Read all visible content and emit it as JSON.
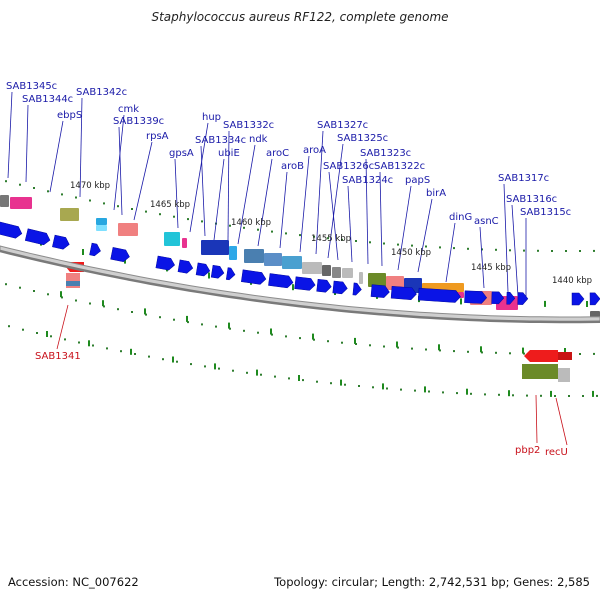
{
  "title": "Staphylococcus aureus RF122, complete genome",
  "footer": {
    "accession": "Accession: NC_007622",
    "topology": "Topology: circular; Length: 2,742,531 bp; Genes: 2,585"
  },
  "colors": {
    "background": "#ffffff",
    "forward_label": "#1a1aa8",
    "reverse_label": "#c8101a",
    "cds_arrow": "#0a14e6",
    "backbone": "#8c8c8c",
    "tick": "#1e8a1e",
    "dot": "#2e7d2e"
  },
  "kbp_labels": [
    "1470 kbp",
    "1465 kbp",
    "1460 kbp",
    "1455 kbp",
    "1450 kbp",
    "1445 kbp",
    "1440 kbp"
  ],
  "forward_genes": [
    "SAB1345c",
    "SAB1344c",
    "ebpS",
    "SAB1342c",
    "cmk",
    "SAB1339c",
    "rpsA",
    "gpsA",
    "hup",
    "SAB1334c",
    "ubiE",
    "SAB1332c",
    "ndk",
    "aroC",
    "aroB",
    "aroA",
    "SAB1327c",
    "SAB1325c",
    "SAB1326c",
    "SAB1324c",
    "SAB1323c",
    "SAB1322c",
    "papS",
    "birA",
    "dinG",
    "asnC",
    "SAB1317c",
    "SAB1316c",
    "SAB1315c"
  ],
  "reverse_genes": [
    "SAB1341",
    "pbp2",
    "recU"
  ]
}
